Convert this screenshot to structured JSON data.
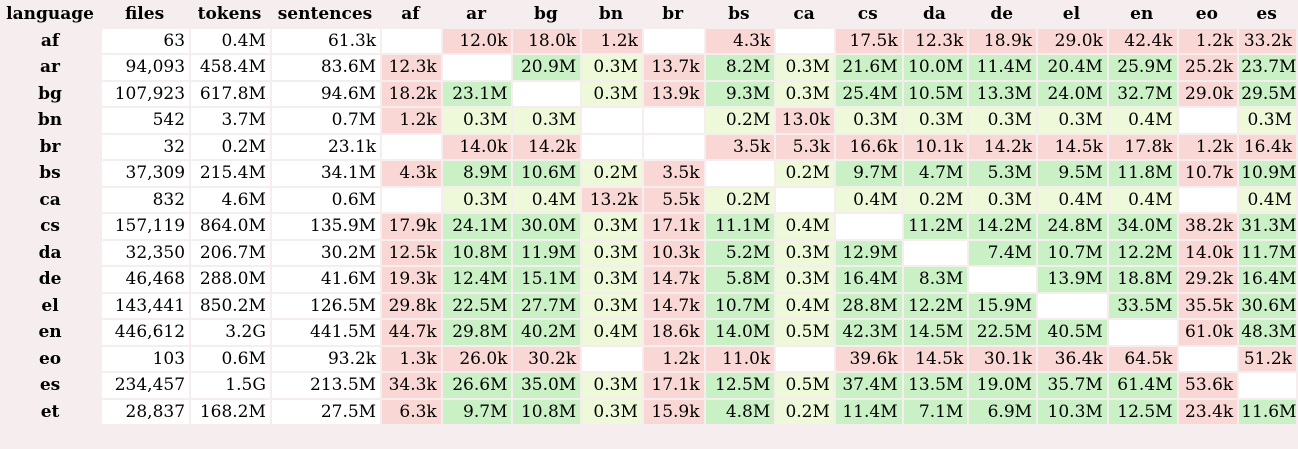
{
  "columns": [
    "language",
    "files",
    "tokens",
    "sentences",
    "af",
    "ar",
    "bg",
    "bn",
    "br",
    "bs",
    "ca",
    "cs",
    "da",
    "de",
    "el",
    "en",
    "eo",
    "es"
  ],
  "rows": [
    {
      "lang": "af",
      "cells": [
        {
          "v": "63",
          "c": "white"
        },
        {
          "v": "0.4M",
          "c": "white"
        },
        {
          "v": "61.3k",
          "c": "white"
        },
        {
          "v": "",
          "c": "white"
        },
        {
          "v": "12.0k",
          "c": "pink"
        },
        {
          "v": "18.0k",
          "c": "pink"
        },
        {
          "v": "1.2k",
          "c": "pink"
        },
        {
          "v": "",
          "c": "white"
        },
        {
          "v": "4.3k",
          "c": "pink"
        },
        {
          "v": "",
          "c": "white"
        },
        {
          "v": "17.5k",
          "c": "pink"
        },
        {
          "v": "12.3k",
          "c": "pink"
        },
        {
          "v": "18.9k",
          "c": "pink"
        },
        {
          "v": "29.0k",
          "c": "pink"
        },
        {
          "v": "42.4k",
          "c": "pink"
        },
        {
          "v": "1.2k",
          "c": "pink"
        },
        {
          "v": "33.2k",
          "c": "pink"
        }
      ]
    },
    {
      "lang": "ar",
      "cells": [
        {
          "v": "94,093",
          "c": "white"
        },
        {
          "v": "458.4M",
          "c": "white"
        },
        {
          "v": "83.6M",
          "c": "white"
        },
        {
          "v": "12.3k",
          "c": "pink"
        },
        {
          "v": "",
          "c": "white"
        },
        {
          "v": "20.9M",
          "c": "green"
        },
        {
          "v": "0.3M",
          "c": "pale"
        },
        {
          "v": "13.7k",
          "c": "pink"
        },
        {
          "v": "8.2M",
          "c": "green"
        },
        {
          "v": "0.3M",
          "c": "pale"
        },
        {
          "v": "21.6M",
          "c": "green"
        },
        {
          "v": "10.0M",
          "c": "green"
        },
        {
          "v": "11.4M",
          "c": "green"
        },
        {
          "v": "20.4M",
          "c": "green"
        },
        {
          "v": "25.9M",
          "c": "green"
        },
        {
          "v": "25.2k",
          "c": "pink"
        },
        {
          "v": "23.7M",
          "c": "green"
        }
      ]
    },
    {
      "lang": "bg",
      "cells": [
        {
          "v": "107,923",
          "c": "white"
        },
        {
          "v": "617.8M",
          "c": "white"
        },
        {
          "v": "94.6M",
          "c": "white"
        },
        {
          "v": "18.2k",
          "c": "pink"
        },
        {
          "v": "23.1M",
          "c": "green"
        },
        {
          "v": "",
          "c": "white"
        },
        {
          "v": "0.3M",
          "c": "pale"
        },
        {
          "v": "13.9k",
          "c": "pink"
        },
        {
          "v": "9.3M",
          "c": "green"
        },
        {
          "v": "0.3M",
          "c": "pale"
        },
        {
          "v": "25.4M",
          "c": "green"
        },
        {
          "v": "10.5M",
          "c": "green"
        },
        {
          "v": "13.3M",
          "c": "green"
        },
        {
          "v": "24.0M",
          "c": "green"
        },
        {
          "v": "32.7M",
          "c": "green"
        },
        {
          "v": "29.0k",
          "c": "pink"
        },
        {
          "v": "29.5M",
          "c": "green"
        }
      ]
    },
    {
      "lang": "bn",
      "cells": [
        {
          "v": "542",
          "c": "white"
        },
        {
          "v": "3.7M",
          "c": "white"
        },
        {
          "v": "0.7M",
          "c": "white"
        },
        {
          "v": "1.2k",
          "c": "pink"
        },
        {
          "v": "0.3M",
          "c": "pale"
        },
        {
          "v": "0.3M",
          "c": "pale"
        },
        {
          "v": "",
          "c": "white"
        },
        {
          "v": "",
          "c": "white"
        },
        {
          "v": "0.2M",
          "c": "pale"
        },
        {
          "v": "13.0k",
          "c": "pink"
        },
        {
          "v": "0.3M",
          "c": "pale"
        },
        {
          "v": "0.3M",
          "c": "pale"
        },
        {
          "v": "0.3M",
          "c": "pale"
        },
        {
          "v": "0.3M",
          "c": "pale"
        },
        {
          "v": "0.4M",
          "c": "pale"
        },
        {
          "v": "",
          "c": "white"
        },
        {
          "v": "0.3M",
          "c": "pale"
        }
      ]
    },
    {
      "lang": "br",
      "cells": [
        {
          "v": "32",
          "c": "white"
        },
        {
          "v": "0.2M",
          "c": "white"
        },
        {
          "v": "23.1k",
          "c": "white"
        },
        {
          "v": "",
          "c": "white"
        },
        {
          "v": "14.0k",
          "c": "pink"
        },
        {
          "v": "14.2k",
          "c": "pink"
        },
        {
          "v": "",
          "c": "white"
        },
        {
          "v": "",
          "c": "white"
        },
        {
          "v": "3.5k",
          "c": "pink"
        },
        {
          "v": "5.3k",
          "c": "pink"
        },
        {
          "v": "16.6k",
          "c": "pink"
        },
        {
          "v": "10.1k",
          "c": "pink"
        },
        {
          "v": "14.2k",
          "c": "pink"
        },
        {
          "v": "14.5k",
          "c": "pink"
        },
        {
          "v": "17.8k",
          "c": "pink"
        },
        {
          "v": "1.2k",
          "c": "pink"
        },
        {
          "v": "16.4k",
          "c": "pink"
        }
      ]
    },
    {
      "lang": "bs",
      "cells": [
        {
          "v": "37,309",
          "c": "white"
        },
        {
          "v": "215.4M",
          "c": "white"
        },
        {
          "v": "34.1M",
          "c": "white"
        },
        {
          "v": "4.3k",
          "c": "pink"
        },
        {
          "v": "8.9M",
          "c": "green"
        },
        {
          "v": "10.6M",
          "c": "green"
        },
        {
          "v": "0.2M",
          "c": "pale"
        },
        {
          "v": "3.5k",
          "c": "pink"
        },
        {
          "v": "",
          "c": "white"
        },
        {
          "v": "0.2M",
          "c": "pale"
        },
        {
          "v": "9.7M",
          "c": "green"
        },
        {
          "v": "4.7M",
          "c": "green"
        },
        {
          "v": "5.3M",
          "c": "green"
        },
        {
          "v": "9.5M",
          "c": "green"
        },
        {
          "v": "11.8M",
          "c": "green"
        },
        {
          "v": "10.7k",
          "c": "pink"
        },
        {
          "v": "10.9M",
          "c": "green"
        }
      ]
    },
    {
      "lang": "ca",
      "cells": [
        {
          "v": "832",
          "c": "white"
        },
        {
          "v": "4.6M",
          "c": "white"
        },
        {
          "v": "0.6M",
          "c": "white"
        },
        {
          "v": "",
          "c": "white"
        },
        {
          "v": "0.3M",
          "c": "pale"
        },
        {
          "v": "0.4M",
          "c": "pale"
        },
        {
          "v": "13.2k",
          "c": "pink"
        },
        {
          "v": "5.5k",
          "c": "pink"
        },
        {
          "v": "0.2M",
          "c": "pale"
        },
        {
          "v": "",
          "c": "white"
        },
        {
          "v": "0.4M",
          "c": "pale"
        },
        {
          "v": "0.2M",
          "c": "pale"
        },
        {
          "v": "0.3M",
          "c": "pale"
        },
        {
          "v": "0.4M",
          "c": "pale"
        },
        {
          "v": "0.4M",
          "c": "pale"
        },
        {
          "v": "",
          "c": "white"
        },
        {
          "v": "0.4M",
          "c": "pale"
        }
      ]
    },
    {
      "lang": "cs",
      "cells": [
        {
          "v": "157,119",
          "c": "white"
        },
        {
          "v": "864.0M",
          "c": "white"
        },
        {
          "v": "135.9M",
          "c": "white"
        },
        {
          "v": "17.9k",
          "c": "pink"
        },
        {
          "v": "24.1M",
          "c": "green"
        },
        {
          "v": "30.0M",
          "c": "green"
        },
        {
          "v": "0.3M",
          "c": "pale"
        },
        {
          "v": "17.1k",
          "c": "pink"
        },
        {
          "v": "11.1M",
          "c": "green"
        },
        {
          "v": "0.4M",
          "c": "pale"
        },
        {
          "v": "",
          "c": "white"
        },
        {
          "v": "11.2M",
          "c": "green"
        },
        {
          "v": "14.2M",
          "c": "green"
        },
        {
          "v": "24.8M",
          "c": "green"
        },
        {
          "v": "34.0M",
          "c": "green"
        },
        {
          "v": "38.2k",
          "c": "pink"
        },
        {
          "v": "31.3M",
          "c": "green"
        }
      ]
    },
    {
      "lang": "da",
      "cells": [
        {
          "v": "32,350",
          "c": "white"
        },
        {
          "v": "206.7M",
          "c": "white"
        },
        {
          "v": "30.2M",
          "c": "white"
        },
        {
          "v": "12.5k",
          "c": "pink"
        },
        {
          "v": "10.8M",
          "c": "green"
        },
        {
          "v": "11.9M",
          "c": "green"
        },
        {
          "v": "0.3M",
          "c": "pale"
        },
        {
          "v": "10.3k",
          "c": "pink"
        },
        {
          "v": "5.2M",
          "c": "green"
        },
        {
          "v": "0.3M",
          "c": "pale"
        },
        {
          "v": "12.9M",
          "c": "green"
        },
        {
          "v": "",
          "c": "white"
        },
        {
          "v": "7.4M",
          "c": "green"
        },
        {
          "v": "10.7M",
          "c": "green"
        },
        {
          "v": "12.2M",
          "c": "green"
        },
        {
          "v": "14.0k",
          "c": "pink"
        },
        {
          "v": "11.7M",
          "c": "green"
        }
      ]
    },
    {
      "lang": "de",
      "cells": [
        {
          "v": "46,468",
          "c": "white"
        },
        {
          "v": "288.0M",
          "c": "white"
        },
        {
          "v": "41.6M",
          "c": "white"
        },
        {
          "v": "19.3k",
          "c": "pink"
        },
        {
          "v": "12.4M",
          "c": "green"
        },
        {
          "v": "15.1M",
          "c": "green"
        },
        {
          "v": "0.3M",
          "c": "pale"
        },
        {
          "v": "14.7k",
          "c": "pink"
        },
        {
          "v": "5.8M",
          "c": "green"
        },
        {
          "v": "0.3M",
          "c": "pale"
        },
        {
          "v": "16.4M",
          "c": "green"
        },
        {
          "v": "8.3M",
          "c": "green"
        },
        {
          "v": "",
          "c": "white"
        },
        {
          "v": "13.9M",
          "c": "green"
        },
        {
          "v": "18.8M",
          "c": "green"
        },
        {
          "v": "29.2k",
          "c": "pink"
        },
        {
          "v": "16.4M",
          "c": "green"
        }
      ]
    },
    {
      "lang": "el",
      "cells": [
        {
          "v": "143,441",
          "c": "white"
        },
        {
          "v": "850.2M",
          "c": "white"
        },
        {
          "v": "126.5M",
          "c": "white"
        },
        {
          "v": "29.8k",
          "c": "pink"
        },
        {
          "v": "22.5M",
          "c": "green"
        },
        {
          "v": "27.7M",
          "c": "green"
        },
        {
          "v": "0.3M",
          "c": "pale"
        },
        {
          "v": "14.7k",
          "c": "pink"
        },
        {
          "v": "10.7M",
          "c": "green"
        },
        {
          "v": "0.4M",
          "c": "pale"
        },
        {
          "v": "28.8M",
          "c": "green"
        },
        {
          "v": "12.2M",
          "c": "green"
        },
        {
          "v": "15.9M",
          "c": "green"
        },
        {
          "v": "",
          "c": "white"
        },
        {
          "v": "33.5M",
          "c": "green"
        },
        {
          "v": "35.5k",
          "c": "pink"
        },
        {
          "v": "30.6M",
          "c": "green"
        }
      ]
    },
    {
      "lang": "en",
      "cells": [
        {
          "v": "446,612",
          "c": "white"
        },
        {
          "v": "3.2G",
          "c": "white"
        },
        {
          "v": "441.5M",
          "c": "white"
        },
        {
          "v": "44.7k",
          "c": "pink"
        },
        {
          "v": "29.8M",
          "c": "green"
        },
        {
          "v": "40.2M",
          "c": "green"
        },
        {
          "v": "0.4M",
          "c": "pale"
        },
        {
          "v": "18.6k",
          "c": "pink"
        },
        {
          "v": "14.0M",
          "c": "green"
        },
        {
          "v": "0.5M",
          "c": "pale"
        },
        {
          "v": "42.3M",
          "c": "green"
        },
        {
          "v": "14.5M",
          "c": "green"
        },
        {
          "v": "22.5M",
          "c": "green"
        },
        {
          "v": "40.5M",
          "c": "green"
        },
        {
          "v": "",
          "c": "white"
        },
        {
          "v": "61.0k",
          "c": "pink"
        },
        {
          "v": "48.3M",
          "c": "green"
        }
      ]
    },
    {
      "lang": "eo",
      "cells": [
        {
          "v": "103",
          "c": "white"
        },
        {
          "v": "0.6M",
          "c": "white"
        },
        {
          "v": "93.2k",
          "c": "white"
        },
        {
          "v": "1.3k",
          "c": "pink"
        },
        {
          "v": "26.0k",
          "c": "pink"
        },
        {
          "v": "30.2k",
          "c": "pink"
        },
        {
          "v": "",
          "c": "white"
        },
        {
          "v": "1.2k",
          "c": "pink"
        },
        {
          "v": "11.0k",
          "c": "pink"
        },
        {
          "v": "",
          "c": "white"
        },
        {
          "v": "39.6k",
          "c": "pink"
        },
        {
          "v": "14.5k",
          "c": "pink"
        },
        {
          "v": "30.1k",
          "c": "pink"
        },
        {
          "v": "36.4k",
          "c": "pink"
        },
        {
          "v": "64.5k",
          "c": "pink"
        },
        {
          "v": "",
          "c": "white"
        },
        {
          "v": "51.2k",
          "c": "pink"
        }
      ]
    },
    {
      "lang": "es",
      "cells": [
        {
          "v": "234,457",
          "c": "white"
        },
        {
          "v": "1.5G",
          "c": "white"
        },
        {
          "v": "213.5M",
          "c": "white"
        },
        {
          "v": "34.3k",
          "c": "pink"
        },
        {
          "v": "26.6M",
          "c": "green"
        },
        {
          "v": "35.0M",
          "c": "green"
        },
        {
          "v": "0.3M",
          "c": "pale"
        },
        {
          "v": "17.1k",
          "c": "pink"
        },
        {
          "v": "12.5M",
          "c": "green"
        },
        {
          "v": "0.5M",
          "c": "pale"
        },
        {
          "v": "37.4M",
          "c": "green"
        },
        {
          "v": "13.5M",
          "c": "green"
        },
        {
          "v": "19.0M",
          "c": "green"
        },
        {
          "v": "35.7M",
          "c": "green"
        },
        {
          "v": "61.4M",
          "c": "green"
        },
        {
          "v": "53.6k",
          "c": "pink"
        },
        {
          "v": "",
          "c": "white"
        }
      ]
    },
    {
      "lang": "et",
      "cells": [
        {
          "v": "28,837",
          "c": "white"
        },
        {
          "v": "168.2M",
          "c": "white"
        },
        {
          "v": "27.5M",
          "c": "white"
        },
        {
          "v": "6.3k",
          "c": "pink"
        },
        {
          "v": "9.7M",
          "c": "green"
        },
        {
          "v": "10.8M",
          "c": "green"
        },
        {
          "v": "0.3M",
          "c": "pale"
        },
        {
          "v": "15.9k",
          "c": "pink"
        },
        {
          "v": "4.8M",
          "c": "green"
        },
        {
          "v": "0.2M",
          "c": "pale"
        },
        {
          "v": "11.4M",
          "c": "green"
        },
        {
          "v": "7.1M",
          "c": "green"
        },
        {
          "v": "6.9M",
          "c": "green"
        },
        {
          "v": "10.3M",
          "c": "green"
        },
        {
          "v": "12.5M",
          "c": "green"
        },
        {
          "v": "23.4k",
          "c": "pink"
        },
        {
          "v": "11.6M",
          "c": "green"
        }
      ]
    }
  ]
}
